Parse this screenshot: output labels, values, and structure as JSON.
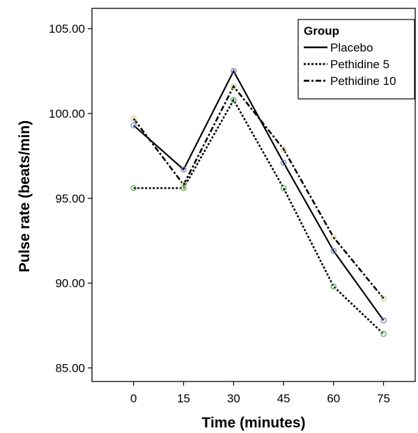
{
  "chart_data": {
    "type": "line",
    "xlabel": "Time (minutes)",
    "ylabel": "Pulse rate (beats/min)",
    "x": [
      0,
      15,
      30,
      45,
      60,
      75
    ],
    "xticks": [
      "0",
      "15",
      "30",
      "45",
      "60",
      "75"
    ],
    "yticks": [
      "85.00",
      "90.00",
      "95.00",
      "100.00",
      "105.00"
    ],
    "ylim": [
      84.2,
      106.2
    ],
    "xlim": [
      -12.5,
      84.5
    ],
    "legend": {
      "title": "Group",
      "position": "top-right"
    },
    "series": [
      {
        "name": "Placebo",
        "style": "solid",
        "marker_color": "#6b7fc4",
        "values": [
          99.3,
          96.7,
          102.5,
          97.1,
          91.9,
          87.8
        ]
      },
      {
        "name": "Pethidine 5",
        "style": "dotted",
        "marker_color": "#4caf50",
        "values": [
          95.6,
          95.6,
          100.8,
          95.6,
          89.8,
          87.0
        ]
      },
      {
        "name": "Pethidine 10",
        "style": "dashdot",
        "marker_color": "#d9c98a",
        "values": [
          99.7,
          95.8,
          101.6,
          97.9,
          92.7,
          89.1
        ]
      }
    ]
  }
}
